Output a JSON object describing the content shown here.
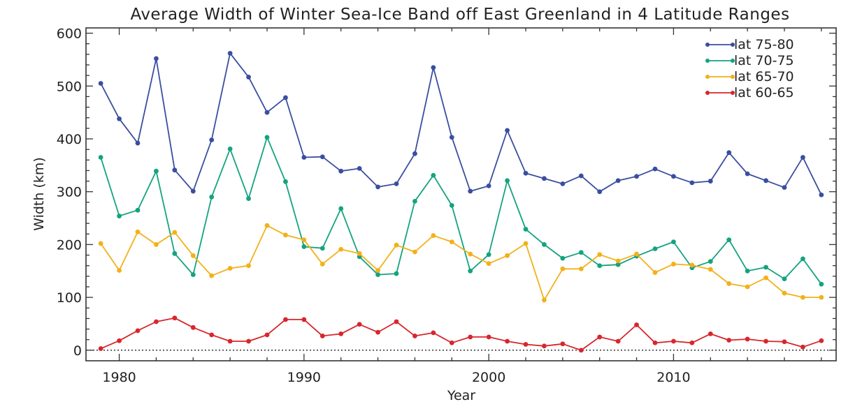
{
  "chart_data": {
    "type": "line",
    "title": "Average Width of Winter Sea-Ice Band off East Greenland in 4 Latitude Ranges",
    "xlabel": "Year",
    "ylabel": "Width (km)",
    "xlim": [
      1978.2,
      2018.8
    ],
    "ylim": [
      -20,
      610
    ],
    "xticks": [
      1980,
      1990,
      2000,
      2010
    ],
    "yticks": [
      0,
      100,
      200,
      300,
      400,
      500,
      600
    ],
    "legend_position": "top-right",
    "zero_line": true,
    "x": [
      1979,
      1980,
      1981,
      1982,
      1983,
      1984,
      1985,
      1986,
      1987,
      1988,
      1989,
      1990,
      1991,
      1992,
      1993,
      1994,
      1995,
      1996,
      1997,
      1998,
      1999,
      2000,
      2001,
      2002,
      2003,
      2004,
      2005,
      2006,
      2007,
      2008,
      2009,
      2010,
      2011,
      2012,
      2013,
      2014,
      2015,
      2016,
      2017,
      2018
    ],
    "series": [
      {
        "name": "lat 75-80",
        "color": "#3a4ea0",
        "values": [
          505,
          438,
          392,
          552,
          341,
          301,
          398,
          562,
          517,
          450,
          478,
          365,
          366,
          339,
          344,
          309,
          315,
          372,
          535,
          403,
          301,
          311,
          416,
          335,
          325,
          315,
          330,
          300,
          321,
          329,
          343,
          329,
          317,
          320,
          374,
          334,
          321,
          308,
          365,
          294
        ]
      },
      {
        "name": "lat 70-75",
        "color": "#14a37f",
        "values": [
          365,
          254,
          265,
          339,
          183,
          143,
          290,
          381,
          287,
          403,
          319,
          196,
          193,
          268,
          177,
          143,
          145,
          282,
          331,
          274,
          150,
          181,
          321,
          229,
          200,
          174,
          185,
          160,
          162,
          178,
          192,
          205,
          156,
          168,
          209,
          150,
          157,
          135,
          173,
          125
        ]
      },
      {
        "name": "lat 65-70",
        "color": "#f2b11a",
        "values": [
          202,
          151,
          224,
          200,
          223,
          179,
          141,
          155,
          160,
          236,
          218,
          209,
          163,
          191,
          183,
          151,
          199,
          186,
          217,
          205,
          182,
          164,
          179,
          202,
          95,
          154,
          154,
          181,
          169,
          182,
          147,
          163,
          161,
          153,
          126,
          120,
          137,
          108,
          100,
          100
        ]
      },
      {
        "name": "lat 60-65",
        "color": "#d8262d",
        "values": [
          3,
          18,
          37,
          54,
          61,
          43,
          29,
          17,
          17,
          29,
          58,
          58,
          27,
          31,
          49,
          34,
          54,
          27,
          33,
          14,
          25,
          25,
          17,
          11,
          8,
          12,
          0,
          25,
          17,
          48,
          14,
          17,
          14,
          31,
          19,
          21,
          17,
          16,
          6,
          18
        ]
      }
    ]
  }
}
